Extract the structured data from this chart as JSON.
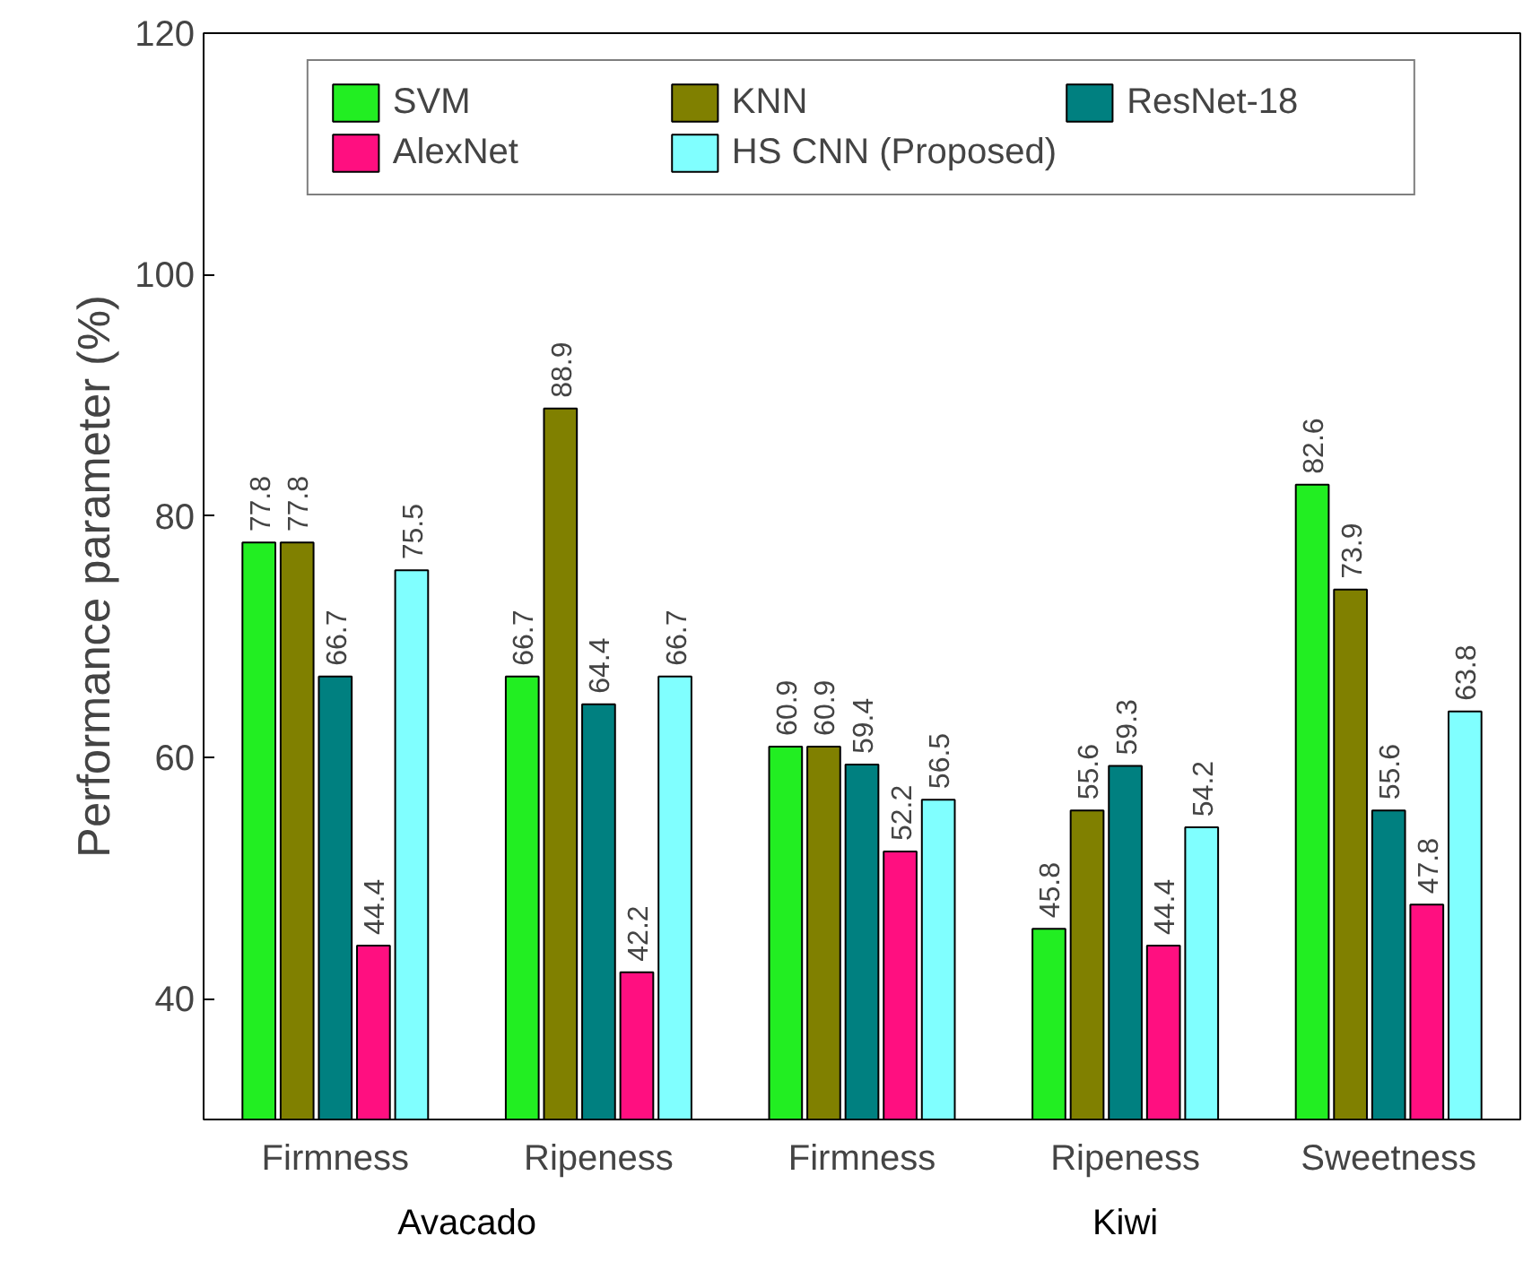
{
  "chart_data": {
    "type": "bar",
    "ylabel": "Performance parameter (%)",
    "categories": [
      "Firmness",
      "Ripeness",
      "Firmness",
      "Ripeness",
      "Sweetness"
    ],
    "series": [
      {
        "name": "SVM",
        "color": "#22ee22",
        "values": [
          77.8,
          66.7,
          60.9,
          45.8,
          82.6
        ]
      },
      {
        "name": "KNN",
        "color": "#808000",
        "values": [
          77.8,
          88.9,
          60.9,
          55.6,
          73.9
        ]
      },
      {
        "name": "ResNet-18",
        "color": "#008080",
        "values": [
          66.7,
          64.4,
          59.4,
          59.3,
          55.6
        ]
      },
      {
        "name": "AlexNet",
        "color": "#ff0f80",
        "values": [
          44.4,
          42.2,
          52.2,
          44.4,
          47.8
        ]
      },
      {
        "name": "HS CNN (Proposed)",
        "color": "#80ffff",
        "values": [
          75.5,
          66.7,
          56.5,
          54.2,
          63.8
        ]
      }
    ],
    "annotations": [
      "Avacado",
      "Kiwi"
    ],
    "ylim": [
      30,
      120
    ],
    "yticks": [
      40,
      60,
      80,
      100,
      120
    ],
    "grid": false,
    "legend": "top",
    "data_labels": true
  }
}
